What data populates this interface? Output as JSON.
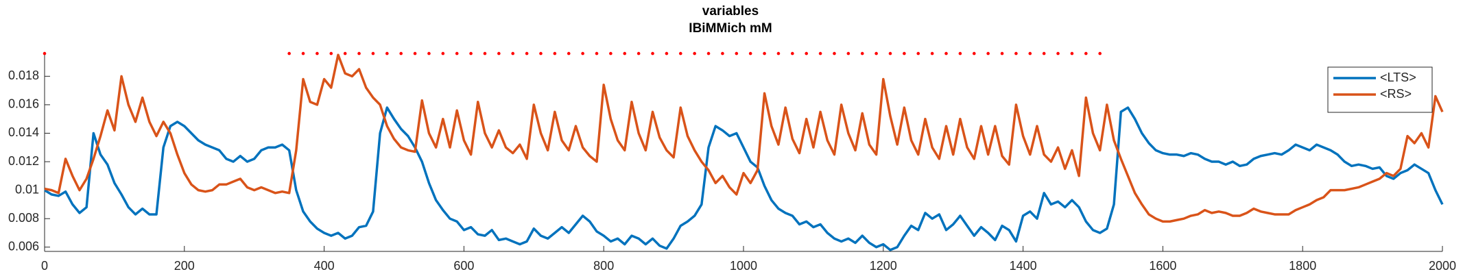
{
  "chart_data": {
    "type": "line",
    "title": "variables",
    "subtitle": "IBiMMich mM",
    "xlim": [
      0,
      2000
    ],
    "ylim": [
      0.0057,
      0.0197
    ],
    "xticks": [
      0,
      200,
      400,
      600,
      800,
      1000,
      1200,
      1400,
      1600,
      1800,
      2000
    ],
    "yticks": [
      0.006,
      0.008,
      0.01,
      0.012,
      0.014,
      0.016,
      0.018
    ],
    "grid": false,
    "legend": "northeast",
    "x": [
      0,
      10,
      20,
      30,
      40,
      50,
      60,
      70,
      80,
      90,
      100,
      110,
      120,
      130,
      140,
      150,
      160,
      170,
      180,
      190,
      200,
      210,
      220,
      230,
      240,
      250,
      260,
      270,
      280,
      290,
      300,
      310,
      320,
      330,
      340,
      350,
      360,
      370,
      380,
      390,
      400,
      410,
      420,
      430,
      440,
      450,
      460,
      470,
      480,
      490,
      500,
      510,
      520,
      530,
      540,
      550,
      560,
      570,
      580,
      590,
      600,
      610,
      620,
      630,
      640,
      650,
      660,
      670,
      680,
      690,
      700,
      710,
      720,
      730,
      740,
      750,
      760,
      770,
      780,
      790,
      800,
      810,
      820,
      830,
      840,
      850,
      860,
      870,
      880,
      890,
      900,
      910,
      920,
      930,
      940,
      950,
      960,
      970,
      980,
      990,
      1000,
      1010,
      1020,
      1030,
      1040,
      1050,
      1060,
      1070,
      1080,
      1090,
      1100,
      1110,
      1120,
      1130,
      1140,
      1150,
      1160,
      1170,
      1180,
      1190,
      1200,
      1210,
      1220,
      1230,
      1240,
      1250,
      1260,
      1270,
      1280,
      1290,
      1300,
      1310,
      1320,
      1330,
      1340,
      1350,
      1360,
      1370,
      1380,
      1390,
      1400,
      1410,
      1420,
      1430,
      1440,
      1450,
      1460,
      1470,
      1480,
      1490,
      1500,
      1510,
      1520,
      1530,
      1540,
      1550,
      1560,
      1570,
      1580,
      1590,
      1600,
      1610,
      1620,
      1630,
      1640,
      1650,
      1660,
      1670,
      1680,
      1690,
      1700,
      1710,
      1720,
      1730,
      1740,
      1750,
      1760,
      1770,
      1780,
      1790,
      1800,
      1810,
      1820,
      1830,
      1840,
      1850,
      1860,
      1870,
      1880,
      1890,
      1900,
      1910,
      1920,
      1930,
      1940,
      1950,
      1960,
      1970,
      1980,
      1990,
      2000
    ],
    "series": [
      {
        "name": "<LTS>",
        "color": "#0072BD",
        "values": [
          0.01,
          0.0097,
          0.0096,
          0.0099,
          0.009,
          0.0084,
          0.0088,
          0.014,
          0.0125,
          0.0118,
          0.0105,
          0.0097,
          0.0088,
          0.0083,
          0.0087,
          0.0083,
          0.0083,
          0.013,
          0.0145,
          0.0148,
          0.0145,
          0.014,
          0.0135,
          0.0132,
          0.013,
          0.0128,
          0.0122,
          0.012,
          0.0124,
          0.012,
          0.0122,
          0.0128,
          0.013,
          0.013,
          0.0132,
          0.0128,
          0.01,
          0.0085,
          0.0078,
          0.0073,
          0.007,
          0.0068,
          0.007,
          0.0066,
          0.0068,
          0.0074,
          0.0075,
          0.0085,
          0.014,
          0.0158,
          0.015,
          0.0143,
          0.0138,
          0.013,
          0.012,
          0.0105,
          0.0093,
          0.0086,
          0.008,
          0.0078,
          0.0072,
          0.0074,
          0.0069,
          0.0068,
          0.0072,
          0.0065,
          0.0066,
          0.0064,
          0.0062,
          0.0064,
          0.0073,
          0.0068,
          0.0066,
          0.007,
          0.0074,
          0.007,
          0.0076,
          0.0082,
          0.0078,
          0.0071,
          0.0068,
          0.0064,
          0.0066,
          0.0062,
          0.0068,
          0.0066,
          0.0062,
          0.0066,
          0.0061,
          0.0059,
          0.0066,
          0.0075,
          0.0078,
          0.0082,
          0.009,
          0.013,
          0.0145,
          0.0142,
          0.0138,
          0.014,
          0.013,
          0.012,
          0.0116,
          0.0103,
          0.0093,
          0.0087,
          0.0084,
          0.0082,
          0.0076,
          0.0078,
          0.0074,
          0.0076,
          0.007,
          0.0066,
          0.0064,
          0.0066,
          0.0063,
          0.0068,
          0.0063,
          0.006,
          0.0062,
          0.0058,
          0.006,
          0.0068,
          0.0075,
          0.0072,
          0.0084,
          0.008,
          0.0083,
          0.0072,
          0.0076,
          0.0082,
          0.0075,
          0.0068,
          0.0074,
          0.007,
          0.0065,
          0.0075,
          0.0072,
          0.0064,
          0.0082,
          0.0085,
          0.008,
          0.0098,
          0.009,
          0.0092,
          0.0088,
          0.0093,
          0.0088,
          0.0078,
          0.0072,
          0.007,
          0.0073,
          0.009,
          0.0155,
          0.0158,
          0.015,
          0.014,
          0.0133,
          0.0128,
          0.0126,
          0.0125,
          0.0125,
          0.0124,
          0.0126,
          0.0125,
          0.0122,
          0.012,
          0.012,
          0.0118,
          0.012,
          0.0117,
          0.0118,
          0.0122,
          0.0124,
          0.0125,
          0.0126,
          0.0125,
          0.0128,
          0.0132,
          0.013,
          0.0128,
          0.0132,
          0.013,
          0.0128,
          0.0125,
          0.012,
          0.0117,
          0.0118,
          0.0117,
          0.0115,
          0.0116,
          0.011,
          0.0108,
          0.0112,
          0.0114,
          0.0118,
          0.0115,
          0.0112,
          0.01,
          0.009
        ]
      },
      {
        "name": "<RS>",
        "color": "#D95319",
        "values": [
          0.0101,
          0.01,
          0.0098,
          0.0122,
          0.011,
          0.01,
          0.0108,
          0.0122,
          0.0138,
          0.0156,
          0.0142,
          0.018,
          0.016,
          0.0148,
          0.0165,
          0.0148,
          0.0138,
          0.0148,
          0.014,
          0.0125,
          0.0112,
          0.0104,
          0.01,
          0.0099,
          0.01,
          0.0104,
          0.0104,
          0.0106,
          0.0108,
          0.0102,
          0.01,
          0.0102,
          0.01,
          0.0098,
          0.0099,
          0.0098,
          0.0128,
          0.0178,
          0.0162,
          0.016,
          0.0178,
          0.0172,
          0.0195,
          0.0182,
          0.018,
          0.0185,
          0.0172,
          0.0165,
          0.016,
          0.0145,
          0.0136,
          0.013,
          0.0128,
          0.0127,
          0.0163,
          0.014,
          0.013,
          0.015,
          0.013,
          0.0156,
          0.0135,
          0.0125,
          0.0162,
          0.014,
          0.013,
          0.0142,
          0.013,
          0.0126,
          0.0132,
          0.0122,
          0.016,
          0.014,
          0.0128,
          0.0155,
          0.0135,
          0.0128,
          0.0145,
          0.013,
          0.0124,
          0.012,
          0.0174,
          0.015,
          0.0135,
          0.0128,
          0.0162,
          0.014,
          0.0128,
          0.0155,
          0.0137,
          0.0128,
          0.0123,
          0.0158,
          0.0138,
          0.0128,
          0.012,
          0.0114,
          0.0105,
          0.011,
          0.0102,
          0.0097,
          0.0112,
          0.0105,
          0.0114,
          0.0168,
          0.0145,
          0.0132,
          0.0158,
          0.0136,
          0.0126,
          0.015,
          0.013,
          0.0155,
          0.0135,
          0.0125,
          0.016,
          0.014,
          0.0128,
          0.0154,
          0.0132,
          0.0125,
          0.0178,
          0.0152,
          0.0132,
          0.0158,
          0.0135,
          0.0125,
          0.015,
          0.013,
          0.0122,
          0.0145,
          0.0125,
          0.015,
          0.013,
          0.0122,
          0.0145,
          0.0125,
          0.0145,
          0.0124,
          0.0118,
          0.016,
          0.0138,
          0.0125,
          0.0145,
          0.0125,
          0.012,
          0.013,
          0.0115,
          0.0128,
          0.011,
          0.0165,
          0.014,
          0.0128,
          0.016,
          0.0135,
          0.0122,
          0.011,
          0.0098,
          0.009,
          0.0083,
          0.008,
          0.0078,
          0.0078,
          0.0079,
          0.008,
          0.0082,
          0.0083,
          0.0086,
          0.0084,
          0.0085,
          0.0084,
          0.0082,
          0.0082,
          0.0084,
          0.0087,
          0.0085,
          0.0084,
          0.0083,
          0.0083,
          0.0083,
          0.0086,
          0.0088,
          0.009,
          0.0093,
          0.0095,
          0.01,
          0.01,
          0.01,
          0.0101,
          0.0102,
          0.0104,
          0.0106,
          0.0108,
          0.0112,
          0.011,
          0.0115,
          0.0138,
          0.0133,
          0.014,
          0.013,
          0.0166,
          0.0155
        ]
      }
    ],
    "markers": {
      "color": "#ff0000",
      "y": 0.0196,
      "x": [
        0,
        350,
        370,
        390,
        410,
        430,
        450,
        470,
        490,
        510,
        530,
        550,
        570,
        590,
        610,
        630,
        650,
        670,
        690,
        710,
        730,
        750,
        770,
        790,
        810,
        830,
        850,
        870,
        890,
        910,
        930,
        950,
        970,
        990,
        1010,
        1030,
        1050,
        1070,
        1090,
        1110,
        1130,
        1150,
        1170,
        1190,
        1210,
        1230,
        1250,
        1270,
        1290,
        1310,
        1330,
        1350,
        1370,
        1390,
        1410,
        1430,
        1450,
        1470,
        1490,
        1510
      ]
    }
  }
}
